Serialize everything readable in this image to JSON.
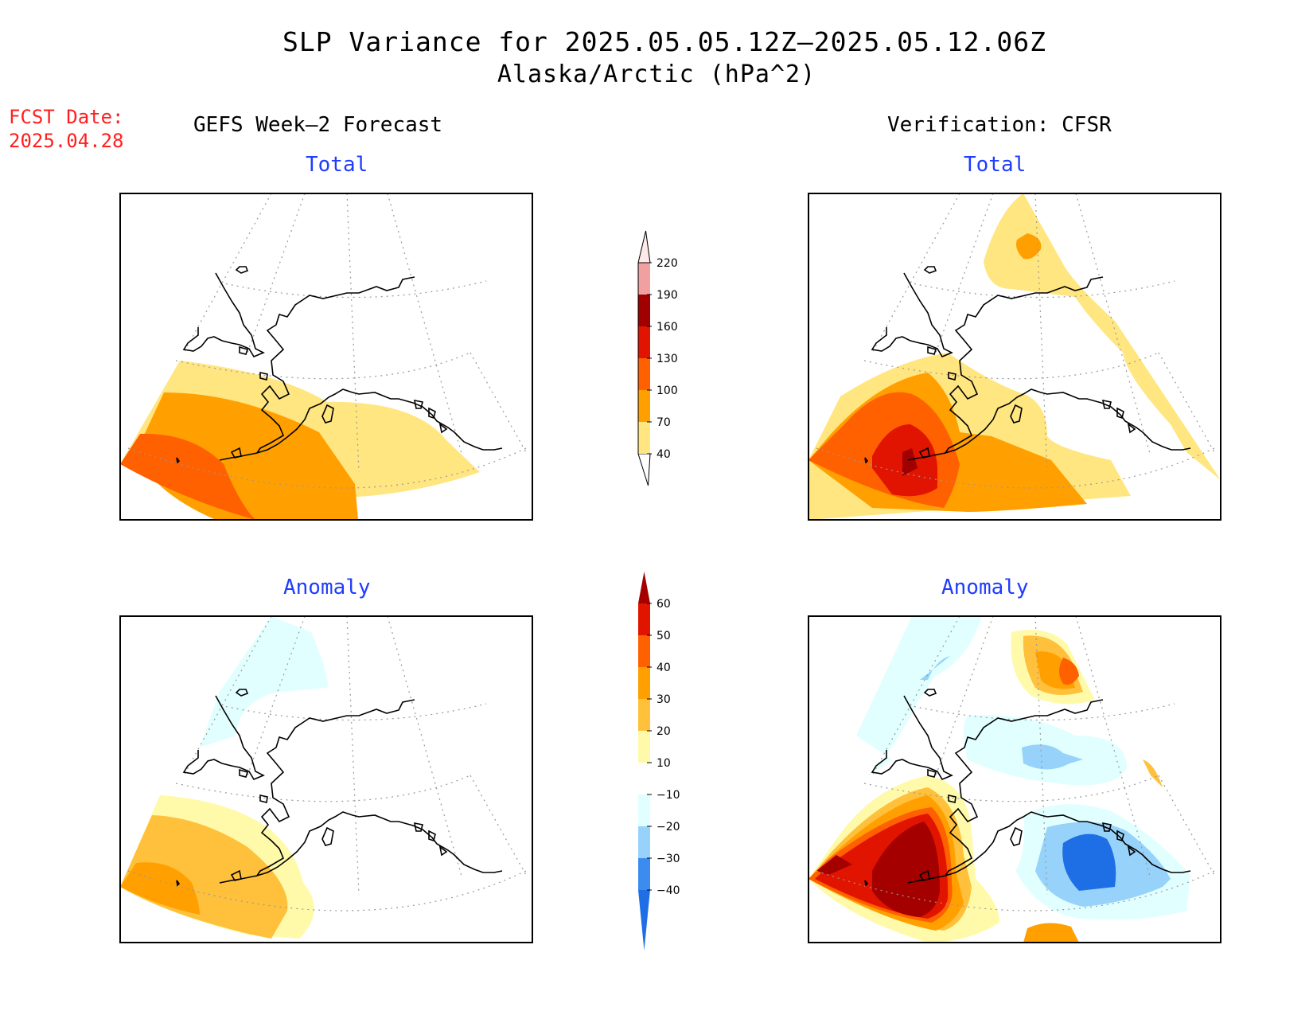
{
  "header": {
    "title": "SLP Variance for 2025.05.05.12Z–2025.05.12.06Z",
    "subtitle": "Alaska/Arctic (hPa^2)"
  },
  "fcst": {
    "line1": "FCST Date:",
    "line2": "2025.04.28"
  },
  "columns": {
    "left": "GEFS Week–2 Forecast",
    "right": "Verification: CFSR"
  },
  "panels": {
    "forecast_total": "Total",
    "verification_total": "Total",
    "forecast_anomaly": "Anomaly",
    "verification_anomaly": "Anomaly"
  },
  "legend_total": {
    "labels": [
      "40",
      "70",
      "100",
      "130",
      "160",
      "190",
      "220"
    ],
    "colors": [
      "#ffe680",
      "#ffa000",
      "#ff6000",
      "#e01400",
      "#a00000",
      "#f0a0a0",
      "#ffe8e8"
    ]
  },
  "legend_anomaly": {
    "labels": [
      "−40",
      "−30",
      "−20",
      "−10",
      "10",
      "20",
      "30",
      "40",
      "50",
      "60"
    ],
    "colors": [
      "#1e6ee6",
      "#3c8cf0",
      "#96d2fa",
      "#e1ffff",
      "#ffffff",
      "#fffaaa",
      "#ffc03c",
      "#ffa000",
      "#ff6000",
      "#e11400",
      "#a50000"
    ]
  }
}
